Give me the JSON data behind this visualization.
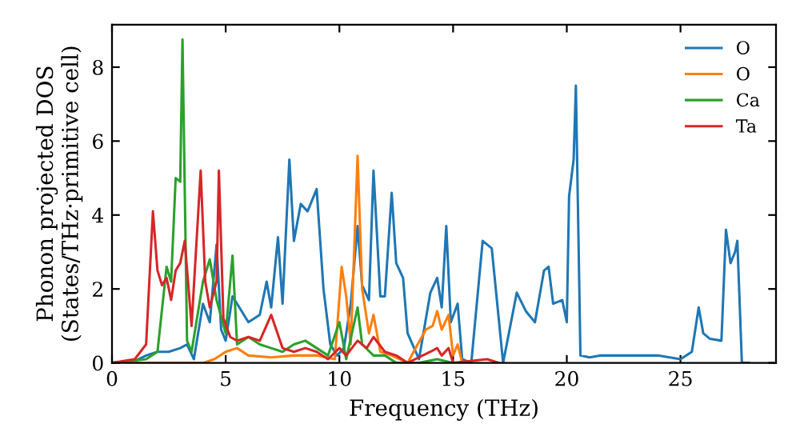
{
  "chart_data": {
    "type": "line",
    "xlabel": "Frequency (THz)",
    "ylabel": "Phonon projected DOS\n(States/THz·primitive cell)",
    "xlim": [
      0,
      29.2
    ],
    "ylim": [
      0,
      9.15
    ],
    "xticks": [
      0,
      5,
      10,
      15,
      20,
      25
    ],
    "yticks": [
      0,
      2,
      4,
      6,
      8
    ],
    "legend": "top right",
    "grid": false,
    "marker": "none",
    "line_style": "solid",
    "series": [
      {
        "name": "O",
        "color": "#1f77b4",
        "x": [
          0,
          1,
          1.5,
          2,
          2.5,
          3,
          3.3,
          3.6,
          4.0,
          4.3,
          4.6,
          4.8,
          5.0,
          5.3,
          5.6,
          6,
          6.5,
          6.8,
          7.0,
          7.3,
          7.5,
          7.8,
          8.0,
          8.3,
          8.6,
          9.0,
          9.3,
          9.6,
          9.9,
          10.2,
          10.5,
          10.8,
          11.0,
          11.3,
          11.5,
          11.8,
          12.0,
          12.3,
          12.5,
          12.8,
          13.0,
          13.5,
          14.0,
          14.3,
          14.5,
          14.7,
          14.9,
          15.2,
          15.4,
          15.8,
          16.3,
          16.7,
          17.2,
          17.8,
          18.2,
          18.6,
          19.0,
          19.2,
          19.4,
          19.8,
          20.0,
          20.1,
          20.3,
          20.4,
          20.6,
          21,
          21.5,
          24,
          25.0,
          25.5,
          25.8,
          26.0,
          26.3,
          26.8,
          27.0,
          27.2,
          27.4,
          27.5,
          27.7,
          28
        ],
        "values": [
          0,
          0.05,
          0.2,
          0.3,
          0.3,
          0.4,
          0.5,
          0.1,
          1.6,
          1.1,
          3.2,
          0.9,
          0.6,
          1.8,
          1.5,
          1.1,
          1.3,
          2.2,
          1.5,
          3.4,
          1.6,
          5.5,
          3.3,
          4.3,
          4.1,
          4.7,
          2,
          0.5,
          0.2,
          0.4,
          1.6,
          3.7,
          2.1,
          1.7,
          5.2,
          1.8,
          1.8,
          4.6,
          2.7,
          2.3,
          0.8,
          0.1,
          1.9,
          2.3,
          1.5,
          3.7,
          1.1,
          1.6,
          0.1,
          0,
          3.3,
          3.1,
          0,
          1.9,
          1.4,
          1.1,
          2.5,
          2.6,
          1.6,
          1.7,
          1.1,
          4.5,
          5.5,
          7.5,
          0.2,
          0.15,
          0.2,
          0.2,
          0.1,
          0.3,
          1.5,
          0.8,
          0.65,
          0.6,
          3.6,
          2.7,
          3.0,
          3.3,
          0,
          0
        ]
      },
      {
        "name": "O",
        "color": "#ff7f0e",
        "x": [
          0,
          4,
          4.5,
          5,
          5.5,
          6,
          7,
          8,
          9,
          9.8,
          10.1,
          10.3,
          10.5,
          10.8,
          11.0,
          11.3,
          11.5,
          11.8,
          12.3,
          13,
          13.8,
          14.1,
          14.3,
          14.5,
          14.8,
          15,
          15.2,
          15.4
        ],
        "values": [
          0,
          0,
          0.1,
          0.3,
          0.4,
          0.2,
          0.15,
          0.2,
          0.2,
          0.1,
          2.6,
          1.8,
          0.5,
          5.6,
          2,
          0.8,
          1.3,
          0.3,
          0.2,
          0,
          0.9,
          1,
          1.4,
          0.9,
          1.3,
          0.2,
          0.5,
          0
        ]
      },
      {
        "name": "Ca",
        "color": "#2ca02c",
        "x": [
          0,
          1.5,
          2,
          2.4,
          2.6,
          2.8,
          3.0,
          3.1,
          3.3,
          3.5,
          4,
          4.3,
          4.6,
          5.0,
          5.3,
          5.5,
          6,
          6.5,
          7,
          7.5,
          8,
          8.5,
          9,
          9.5,
          10,
          10.3,
          10.8,
          11,
          11.5,
          12,
          12.5,
          13.5,
          14.3,
          15
        ],
        "values": [
          0,
          0.1,
          0.3,
          2.6,
          2.2,
          5,
          4.9,
          8.75,
          0.6,
          0.3,
          2.2,
          2.8,
          1.7,
          0.8,
          2.9,
          0.5,
          0.7,
          0.5,
          0.4,
          0.3,
          0.5,
          0.6,
          0.4,
          0.2,
          1.1,
          0.1,
          1.5,
          0.5,
          0.2,
          0.2,
          0,
          0,
          0.1,
          0
        ]
      },
      {
        "name": "Ta",
        "color": "#d62728",
        "x": [
          0,
          1,
          1.5,
          1.8,
          2.0,
          2.2,
          2.4,
          2.6,
          2.8,
          3.0,
          3.2,
          3.5,
          3.9,
          4.1,
          4.3,
          4.6,
          4.7,
          4.9,
          5.2,
          5.5,
          6,
          6.5,
          7,
          7.5,
          8,
          8.5,
          9,
          9.5,
          10,
          10.3,
          10.8,
          11.2,
          11.5,
          12,
          12.5,
          13,
          14,
          14.3,
          14.5,
          14.8,
          15.0,
          16.5,
          17
        ],
        "values": [
          0,
          0.1,
          0.5,
          4.1,
          2.5,
          2.1,
          2.3,
          1.7,
          2.5,
          2.7,
          3.3,
          1,
          5.2,
          2.2,
          1.5,
          2.2,
          5.2,
          1.2,
          0.7,
          0.6,
          0.7,
          0.6,
          1.3,
          0.4,
          0.3,
          0.4,
          0.3,
          0.1,
          0.4,
          0.2,
          0.6,
          0.4,
          0.7,
          0.3,
          0.2,
          0,
          0.3,
          0.4,
          0.2,
          0.4,
          0,
          0.1,
          0
        ]
      }
    ]
  }
}
